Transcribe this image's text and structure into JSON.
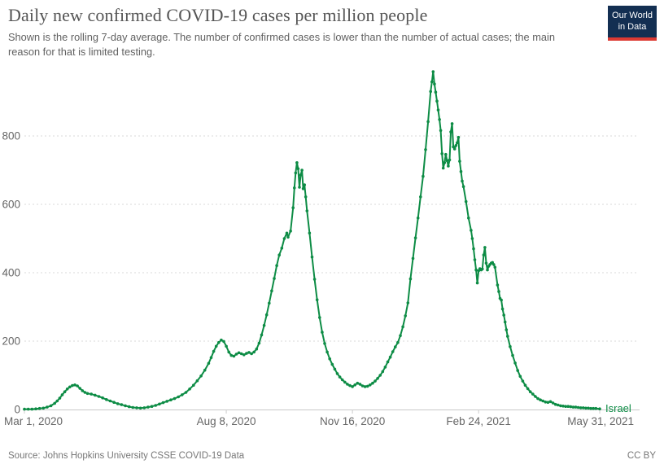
{
  "header": {
    "title": "Daily new confirmed COVID-19 cases per million people",
    "subtitle": "Shown is the rolling 7-day average. The number of confirmed cases is lower than the number of actual cases; the main reason for that is limited testing."
  },
  "logo": {
    "line1": "Our World",
    "line2": "in Data"
  },
  "footer": {
    "source": "Source: Johns Hopkins University CSSE COVID-19 Data",
    "license": "CC BY"
  },
  "colors": {
    "series_green": "#0d8c45",
    "logo_bg": "#132f52",
    "logo_accent": "#dc3a33",
    "axis_text": "#666666",
    "gridline": "#dadada",
    "axis_line": "#c9c9c9"
  },
  "chart_data": {
    "type": "line",
    "title": "Daily new confirmed COVID-19 cases per million people",
    "xlabel": "",
    "ylabel": "",
    "grid": "horizontal-dotted",
    "legend_position": "end-of-line",
    "ylim": [
      0,
      1000
    ],
    "x_range_days": [
      0,
      456
    ],
    "y_ticks": [
      0,
      200,
      400,
      600,
      800
    ],
    "x_ticks": [
      {
        "day": 0,
        "label": "Mar 1, 2020"
      },
      {
        "day": 160,
        "label": "Aug 8, 2020"
      },
      {
        "day": 260,
        "label": "Nov 16, 2020"
      },
      {
        "day": 360,
        "label": "Feb 24, 2021"
      },
      {
        "day": 456,
        "label": "May 31, 2021"
      }
    ],
    "series": [
      {
        "name": "Israel",
        "color": "#0d8c45",
        "points": [
          [
            0,
            1
          ],
          [
            3,
            1
          ],
          [
            6,
            1
          ],
          [
            9,
            2
          ],
          [
            12,
            3
          ],
          [
            15,
            4
          ],
          [
            18,
            7
          ],
          [
            21,
            11
          ],
          [
            24,
            18
          ],
          [
            26,
            25
          ],
          [
            28,
            33
          ],
          [
            30,
            43
          ],
          [
            32,
            52
          ],
          [
            34,
            60
          ],
          [
            36,
            66
          ],
          [
            38,
            70
          ],
          [
            40,
            72
          ],
          [
            42,
            69
          ],
          [
            44,
            62
          ],
          [
            46,
            55
          ],
          [
            48,
            50
          ],
          [
            50,
            47
          ],
          [
            53,
            45
          ],
          [
            56,
            42
          ],
          [
            59,
            38
          ],
          [
            62,
            34
          ],
          [
            65,
            29
          ],
          [
            68,
            25
          ],
          [
            71,
            21
          ],
          [
            74,
            17
          ],
          [
            77,
            14
          ],
          [
            80,
            11
          ],
          [
            83,
            8
          ],
          [
            86,
            6
          ],
          [
            89,
            5
          ],
          [
            92,
            4
          ],
          [
            95,
            5
          ],
          [
            98,
            7
          ],
          [
            101,
            9
          ],
          [
            104,
            12
          ],
          [
            107,
            16
          ],
          [
            110,
            20
          ],
          [
            113,
            24
          ],
          [
            116,
            28
          ],
          [
            119,
            32
          ],
          [
            122,
            37
          ],
          [
            125,
            43
          ],
          [
            128,
            50
          ],
          [
            131,
            60
          ],
          [
            134,
            71
          ],
          [
            137,
            84
          ],
          [
            140,
            98
          ],
          [
            143,
            115
          ],
          [
            146,
            135
          ],
          [
            148,
            152
          ],
          [
            150,
            170
          ],
          [
            152,
            185
          ],
          [
            154,
            196
          ],
          [
            156,
            203
          ],
          [
            158,
            199
          ],
          [
            160,
            185
          ],
          [
            162,
            168
          ],
          [
            164,
            158
          ],
          [
            166,
            156
          ],
          [
            168,
            162
          ],
          [
            170,
            166
          ],
          [
            172,
            163
          ],
          [
            174,
            160
          ],
          [
            176,
            164
          ],
          [
            178,
            167
          ],
          [
            180,
            163
          ],
          [
            182,
            168
          ],
          [
            184,
            177
          ],
          [
            186,
            194
          ],
          [
            188,
            218
          ],
          [
            190,
            246
          ],
          [
            192,
            277
          ],
          [
            194,
            311
          ],
          [
            196,
            347
          ],
          [
            198,
            383
          ],
          [
            200,
            421
          ],
          [
            202,
            452
          ],
          [
            204,
            472
          ],
          [
            206,
            500
          ],
          [
            208,
            516
          ],
          [
            209,
            504
          ],
          [
            211,
            522
          ],
          [
            213,
            590
          ],
          [
            214,
            648
          ],
          [
            215,
            692
          ],
          [
            216,
            722
          ],
          [
            217,
            704
          ],
          [
            218,
            650
          ],
          [
            219,
            686
          ],
          [
            220,
            700
          ],
          [
            221,
            646
          ],
          [
            222,
            657
          ],
          [
            223,
            622
          ],
          [
            224,
            581
          ],
          [
            226,
            516
          ],
          [
            228,
            446
          ],
          [
            230,
            381
          ],
          [
            232,
            321
          ],
          [
            234,
            269
          ],
          [
            236,
            226
          ],
          [
            238,
            193
          ],
          [
            240,
            168
          ],
          [
            242,
            148
          ],
          [
            244,
            132
          ],
          [
            246,
            118
          ],
          [
            248,
            105
          ],
          [
            250,
            95
          ],
          [
            252,
            87
          ],
          [
            254,
            80
          ],
          [
            256,
            74
          ],
          [
            258,
            70
          ],
          [
            260,
            67
          ],
          [
            262,
            72
          ],
          [
            264,
            77
          ],
          [
            266,
            74
          ],
          [
            268,
            69
          ],
          [
            270,
            67
          ],
          [
            272,
            68
          ],
          [
            274,
            72
          ],
          [
            276,
            77
          ],
          [
            278,
            83
          ],
          [
            280,
            91
          ],
          [
            282,
            100
          ],
          [
            284,
            111
          ],
          [
            286,
            124
          ],
          [
            288,
            139
          ],
          [
            290,
            153
          ],
          [
            292,
            169
          ],
          [
            294,
            183
          ],
          [
            296,
            196
          ],
          [
            298,
            216
          ],
          [
            300,
            242
          ],
          [
            302,
            274
          ],
          [
            304,
            312
          ],
          [
            306,
            382
          ],
          [
            308,
            442
          ],
          [
            310,
            502
          ],
          [
            312,
            560
          ],
          [
            314,
            622
          ],
          [
            316,
            682
          ],
          [
            318,
            760
          ],
          [
            320,
            842
          ],
          [
            322,
            930
          ],
          [
            323,
            958
          ],
          [
            324,
            988
          ],
          [
            325,
            952
          ],
          [
            326,
            928
          ],
          [
            327,
            902
          ],
          [
            328,
            876
          ],
          [
            329,
            848
          ],
          [
            330,
            816
          ],
          [
            331,
            748
          ],
          [
            332,
            706
          ],
          [
            333,
            722
          ],
          [
            334,
            746
          ],
          [
            335,
            728
          ],
          [
            336,
            712
          ],
          [
            337,
            730
          ],
          [
            338,
            812
          ],
          [
            339,
            836
          ],
          [
            340,
            768
          ],
          [
            341,
            762
          ],
          [
            342,
            772
          ],
          [
            343,
            780
          ],
          [
            344,
            796
          ],
          [
            345,
            726
          ],
          [
            346,
            696
          ],
          [
            347,
            668
          ],
          [
            348,
            652
          ],
          [
            350,
            608
          ],
          [
            352,
            560
          ],
          [
            354,
            524
          ],
          [
            355,
            500
          ],
          [
            356,
            470
          ],
          [
            357,
            438
          ],
          [
            358,
            408
          ],
          [
            359,
            370
          ],
          [
            360,
            406
          ],
          [
            361,
            412
          ],
          [
            362,
            408
          ],
          [
            363,
            411
          ],
          [
            364,
            452
          ],
          [
            365,
            474
          ],
          [
            366,
            428
          ],
          [
            367,
            408
          ],
          [
            368,
            419
          ],
          [
            369,
            424
          ],
          [
            370,
            428
          ],
          [
            371,
            430
          ],
          [
            372,
            424
          ],
          [
            373,
            416
          ],
          [
            375,
            364
          ],
          [
            376,
            345
          ],
          [
            377,
            325
          ],
          [
            378,
            320
          ],
          [
            379,
            294
          ],
          [
            380,
            276
          ],
          [
            381,
            256
          ],
          [
            382,
            233
          ],
          [
            383,
            214
          ],
          [
            385,
            184
          ],
          [
            387,
            158
          ],
          [
            389,
            136
          ],
          [
            391,
            114
          ],
          [
            393,
            97
          ],
          [
            395,
            83
          ],
          [
            397,
            71
          ],
          [
            399,
            61
          ],
          [
            401,
            52
          ],
          [
            403,
            45
          ],
          [
            405,
            38
          ],
          [
            407,
            32
          ],
          [
            409,
            28
          ],
          [
            411,
            25
          ],
          [
            413,
            22
          ],
          [
            415,
            21
          ],
          [
            417,
            23
          ],
          [
            419,
            19
          ],
          [
            421,
            15
          ],
          [
            423,
            13
          ],
          [
            425,
            11
          ],
          [
            427,
            10
          ],
          [
            429,
            9
          ],
          [
            431,
            9
          ],
          [
            433,
            8
          ],
          [
            435,
            7
          ],
          [
            437,
            7
          ],
          [
            439,
            6
          ],
          [
            441,
            5
          ],
          [
            443,
            5
          ],
          [
            445,
            4
          ],
          [
            447,
            4
          ],
          [
            449,
            3
          ],
          [
            451,
            3
          ],
          [
            453,
            3
          ],
          [
            456,
            2
          ]
        ]
      }
    ]
  }
}
